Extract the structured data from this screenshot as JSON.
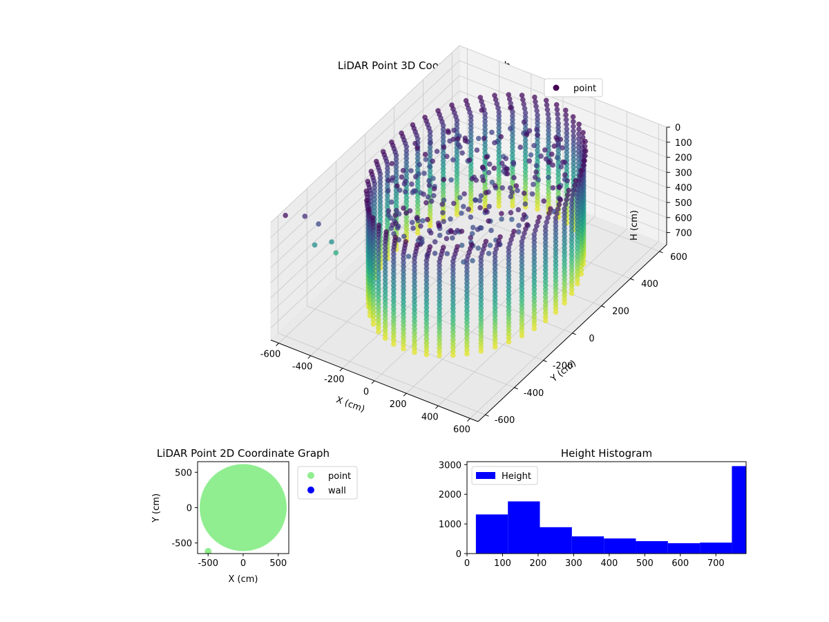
{
  "colors": {
    "viridis": [
      "#440154",
      "#482878",
      "#3e4989",
      "#31688e",
      "#26828e",
      "#1f9e89",
      "#35b779",
      "#6ece58",
      "#b5de2b",
      "#fde725"
    ],
    "pane_gray": "#f2f2f2",
    "grid": "#c8c8c8",
    "scatter2d": "#90ee90",
    "wall": "#0000ff",
    "hist": "#0000ff"
  },
  "chart_data": [
    {
      "type": "scatter",
      "projection": "3d",
      "title": "LiDAR Point 3D Coordinate Graph",
      "xlabel": "X (cm)",
      "ylabel": "Y (cm)",
      "zlabel": "H (cm)",
      "xlim": [
        -650,
        650
      ],
      "ylim": [
        -650,
        650
      ],
      "zlim": [
        780,
        0
      ],
      "xticks": [
        "-600",
        "-400",
        "-200",
        "0",
        "200",
        "400",
        "600"
      ],
      "yticks": [
        "-600",
        "-400",
        "-200",
        "0",
        "200",
        "400",
        "600"
      ],
      "zticks": [
        "0",
        "100",
        "200",
        "300",
        "400",
        "500",
        "600",
        "700"
      ],
      "zticks_values": [
        0,
        100,
        200,
        300,
        400,
        500,
        600,
        700
      ],
      "tick_values": [
        -600,
        -400,
        -200,
        0,
        200,
        400,
        600
      ],
      "legend": [
        "point"
      ],
      "legend_loc": "upper-right",
      "colormap": "viridis by height",
      "grid": true,
      "cloud": {
        "description_shape": "ring wall",
        "center": [
          0,
          50
        ],
        "radius": 500,
        "strips": 48,
        "h_min": 20,
        "h_max": 760
      },
      "outliers": [
        {
          "x": -640,
          "y": -560,
          "h": 30
        },
        {
          "x": -600,
          "y": -470,
          "h": 100
        },
        {
          "x": -560,
          "y": -420,
          "h": 180
        },
        {
          "x": -620,
          "y": -380,
          "h": 380
        },
        {
          "x": -560,
          "y": -330,
          "h": 380
        },
        {
          "x": -560,
          "y": -300,
          "h": 480
        }
      ]
    },
    {
      "type": "scatter",
      "title": "LiDAR Point 2D Coordinate Graph",
      "xlabel": "X (cm)",
      "ylabel": "Y (cm)",
      "xlim": [
        -650,
        650
      ],
      "ylim": [
        -650,
        650
      ],
      "xticks": [
        "-500",
        "0",
        "500"
      ],
      "yticks": [
        "-500",
        "0",
        "500"
      ],
      "tick_values": [
        -500,
        0,
        500
      ],
      "legend": [
        "point",
        "wall"
      ],
      "legend_loc": "outside-right",
      "series": [
        {
          "name": "point",
          "shape": "disc",
          "center": [
            0,
            0
          ],
          "radius": 620
        },
        {
          "name": "wall",
          "count": 0
        }
      ],
      "extra_points": [
        {
          "x": -500,
          "y": -620
        }
      ]
    },
    {
      "type": "bar",
      "subtype": "histogram",
      "title": "Height Histogram",
      "legend": [
        "Height"
      ],
      "legend_loc": "upper-left",
      "xlim": [
        0,
        785
      ],
      "ylim": [
        0,
        3100
      ],
      "xticks": [
        "0",
        "100",
        "200",
        "300",
        "400",
        "500",
        "600",
        "700"
      ],
      "xtick_values": [
        0,
        100,
        200,
        300,
        400,
        500,
        600,
        700
      ],
      "yticks": [
        "0",
        "1000",
        "2000",
        "3000"
      ],
      "ytick_values": [
        0,
        1000,
        2000,
        3000
      ],
      "bin_edges": [
        25,
        115,
        205,
        295,
        385,
        475,
        565,
        655,
        745,
        785
      ],
      "values": [
        1320,
        1760,
        890,
        580,
        510,
        420,
        350,
        370,
        2950
      ]
    }
  ]
}
